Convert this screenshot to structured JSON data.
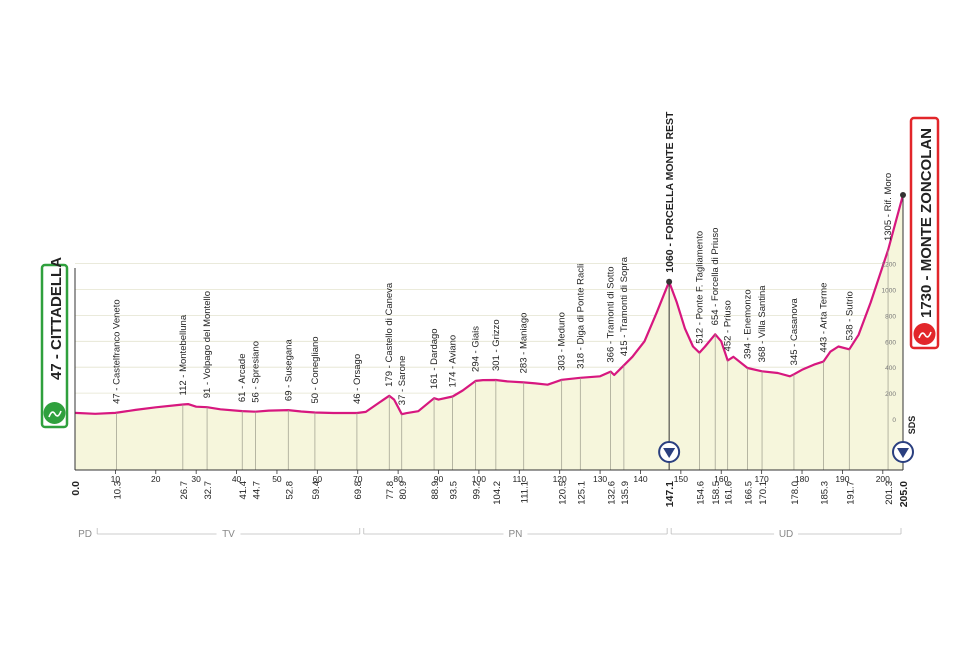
{
  "colors": {
    "profile_line": "#d7177f",
    "profile_fill": "#f6f6dc",
    "start_badge": "#2fa03d",
    "finish_badge": "#e2262a",
    "sprint_marker": "#2a3f7f",
    "grid": "#bdbdbd",
    "text": "#222222"
  },
  "chart_data": {
    "type": "area",
    "title": "",
    "xlabel": "",
    "ylabel": "",
    "xlim": [
      0,
      205
    ],
    "ylim": [
      -300,
      1800
    ],
    "grid": true,
    "start": {
      "name": "47 - CITTADELLA",
      "km": "0.0",
      "elevation": 47,
      "icon": "start-flag-icon"
    },
    "finish": {
      "name": "1730 - MONTE ZONCOLAN",
      "km": "205.0",
      "elevation": 1730,
      "icon": "finish-flag-icon"
    },
    "summit": {
      "name": "1060 - FORCELLA MONTE REST",
      "km": "147.1",
      "elevation": 1060
    },
    "x_ticks": [
      10,
      20,
      30,
      40,
      50,
      60,
      70,
      80,
      90,
      100,
      110,
      120,
      130,
      140,
      150,
      160,
      170,
      180,
      190,
      200
    ],
    "y_ticks": [
      0,
      200,
      400,
      600,
      800,
      1000,
      1200
    ],
    "sds_label": "SDS",
    "profile": [
      [
        0,
        47
      ],
      [
        5,
        40
      ],
      [
        10,
        47
      ],
      [
        15,
        70
      ],
      [
        20,
        90
      ],
      [
        26.7,
        112
      ],
      [
        28,
        115
      ],
      [
        30,
        95
      ],
      [
        32.7,
        91
      ],
      [
        36,
        75
      ],
      [
        41.4,
        61
      ],
      [
        44.7,
        56
      ],
      [
        48,
        65
      ],
      [
        52.8,
        69
      ],
      [
        56,
        58
      ],
      [
        59.4,
        50
      ],
      [
        64,
        46
      ],
      [
        69.8,
        46
      ],
      [
        72,
        55
      ],
      [
        75,
        120
      ],
      [
        77.8,
        179
      ],
      [
        79,
        150
      ],
      [
        80.9,
        37
      ],
      [
        82,
        45
      ],
      [
        85,
        60
      ],
      [
        88.9,
        161
      ],
      [
        90,
        150
      ],
      [
        93.5,
        174
      ],
      [
        96,
        220
      ],
      [
        99.2,
        294
      ],
      [
        101,
        300
      ],
      [
        104.2,
        301
      ],
      [
        107,
        290
      ],
      [
        111.1,
        283
      ],
      [
        114,
        275
      ],
      [
        117,
        265
      ],
      [
        120.5,
        303
      ],
      [
        125.1,
        318
      ],
      [
        130,
        330
      ],
      [
        132.6,
        366
      ],
      [
        133.5,
        340
      ],
      [
        135.9,
        415
      ],
      [
        138,
        480
      ],
      [
        141,
        600
      ],
      [
        144,
        820
      ],
      [
        147.1,
        1060
      ],
      [
        149,
        900
      ],
      [
        151,
        700
      ],
      [
        153,
        560
      ],
      [
        154.6,
        512
      ],
      [
        156,
        560
      ],
      [
        158.5,
        654
      ],
      [
        160,
        600
      ],
      [
        161.6,
        452
      ],
      [
        163,
        480
      ],
      [
        166.5,
        394
      ],
      [
        170.1,
        368
      ],
      [
        174,
        355
      ],
      [
        177,
        330
      ],
      [
        178,
        345
      ],
      [
        180,
        380
      ],
      [
        183,
        420
      ],
      [
        185.3,
        443
      ],
      [
        187,
        520
      ],
      [
        189,
        560
      ],
      [
        191.7,
        538
      ],
      [
        194,
        650
      ],
      [
        197,
        900
      ],
      [
        201.3,
        1305
      ],
      [
        203,
        1500
      ],
      [
        205,
        1730
      ]
    ],
    "waypoints": [
      {
        "km": "10.3",
        "label": "47 - Castelfranco Veneto",
        "x": 10.3,
        "elevation": 47
      },
      {
        "km": "26.7",
        "label": "112 - Montebelluna",
        "x": 26.7,
        "elevation": 112
      },
      {
        "km": "32.7",
        "label": "91 - Volpago del Montello",
        "x": 32.7,
        "elevation": 91
      },
      {
        "km": "41.4",
        "label": "61 - Arcade",
        "x": 41.4,
        "elevation": 61
      },
      {
        "km": "44.7",
        "label": "56 - Spresiano",
        "x": 44.7,
        "elevation": 56
      },
      {
        "km": "52.8",
        "label": "69 - Susegana",
        "x": 52.8,
        "elevation": 69
      },
      {
        "km": "59.4",
        "label": "50 - Conegliano",
        "x": 59.4,
        "elevation": 50
      },
      {
        "km": "69.8",
        "label": "46 - Orsago",
        "x": 69.8,
        "elevation": 46
      },
      {
        "km": "77.8",
        "label": "179 - Castello di Caneva",
        "x": 77.8,
        "elevation": 179
      },
      {
        "km": "80.9",
        "label": "37 - Sarone",
        "x": 80.9,
        "elevation": 37
      },
      {
        "km": "88.9",
        "label": "161 - Dardago",
        "x": 88.9,
        "elevation": 161
      },
      {
        "km": "93.5",
        "label": "174 - Aviano",
        "x": 93.5,
        "elevation": 174
      },
      {
        "km": "99.2",
        "label": "294 - Giais",
        "x": 99.2,
        "elevation": 294
      },
      {
        "km": "104.2",
        "label": "301 - Grizzo",
        "x": 104.2,
        "elevation": 301
      },
      {
        "km": "111.1",
        "label": "283 - Maniago",
        "x": 111.1,
        "elevation": 283
      },
      {
        "km": "120.5",
        "label": "303 - Meduno",
        "x": 120.5,
        "elevation": 303
      },
      {
        "km": "125.1",
        "label": "318 - Diga di Ponte Racli",
        "x": 125.1,
        "elevation": 318
      },
      {
        "km": "132.6",
        "label": "366 - Tramonti di Sotto",
        "x": 132.6,
        "elevation": 366
      },
      {
        "km": "135.9",
        "label": "415 - Tramonti di Sopra",
        "x": 135.9,
        "elevation": 415
      },
      {
        "km": "154.6",
        "label": "512 - Ponte F. Tagliamento",
        "x": 154.6,
        "elevation": 512
      },
      {
        "km": "158.5",
        "label": "654 - Forcella di Priuso",
        "x": 158.5,
        "elevation": 654
      },
      {
        "km": "161.6",
        "label": "452 - Priuso",
        "x": 161.6,
        "elevation": 452
      },
      {
        "km": "166.5",
        "label": "394 - Enemonzo",
        "x": 166.5,
        "elevation": 394
      },
      {
        "km": "170.1",
        "label": "368 - Villa Santina",
        "x": 170.1,
        "elevation": 368
      },
      {
        "km": "178.0",
        "label": "345 - Casanova",
        "x": 178.0,
        "elevation": 345
      },
      {
        "km": "185.3",
        "label": "443 - Arta Terme",
        "x": 185.3,
        "elevation": 443
      },
      {
        "km": "191.7",
        "label": "538 - Sutrio",
        "x": 191.7,
        "elevation": 538
      },
      {
        "km": "201.3",
        "label": "1305 - Rif. Moro",
        "x": 201.3,
        "elevation": 1305
      }
    ],
    "sprint_markers_km": [
      147.1,
      205
    ],
    "provinces": [
      {
        "name": "PD",
        "from": 0,
        "to": 5
      },
      {
        "name": "TV",
        "from": 5,
        "to": 71
      },
      {
        "name": "PN",
        "from": 71,
        "to": 147.1
      },
      {
        "name": "UD",
        "from": 147.1,
        "to": 205
      }
    ]
  }
}
